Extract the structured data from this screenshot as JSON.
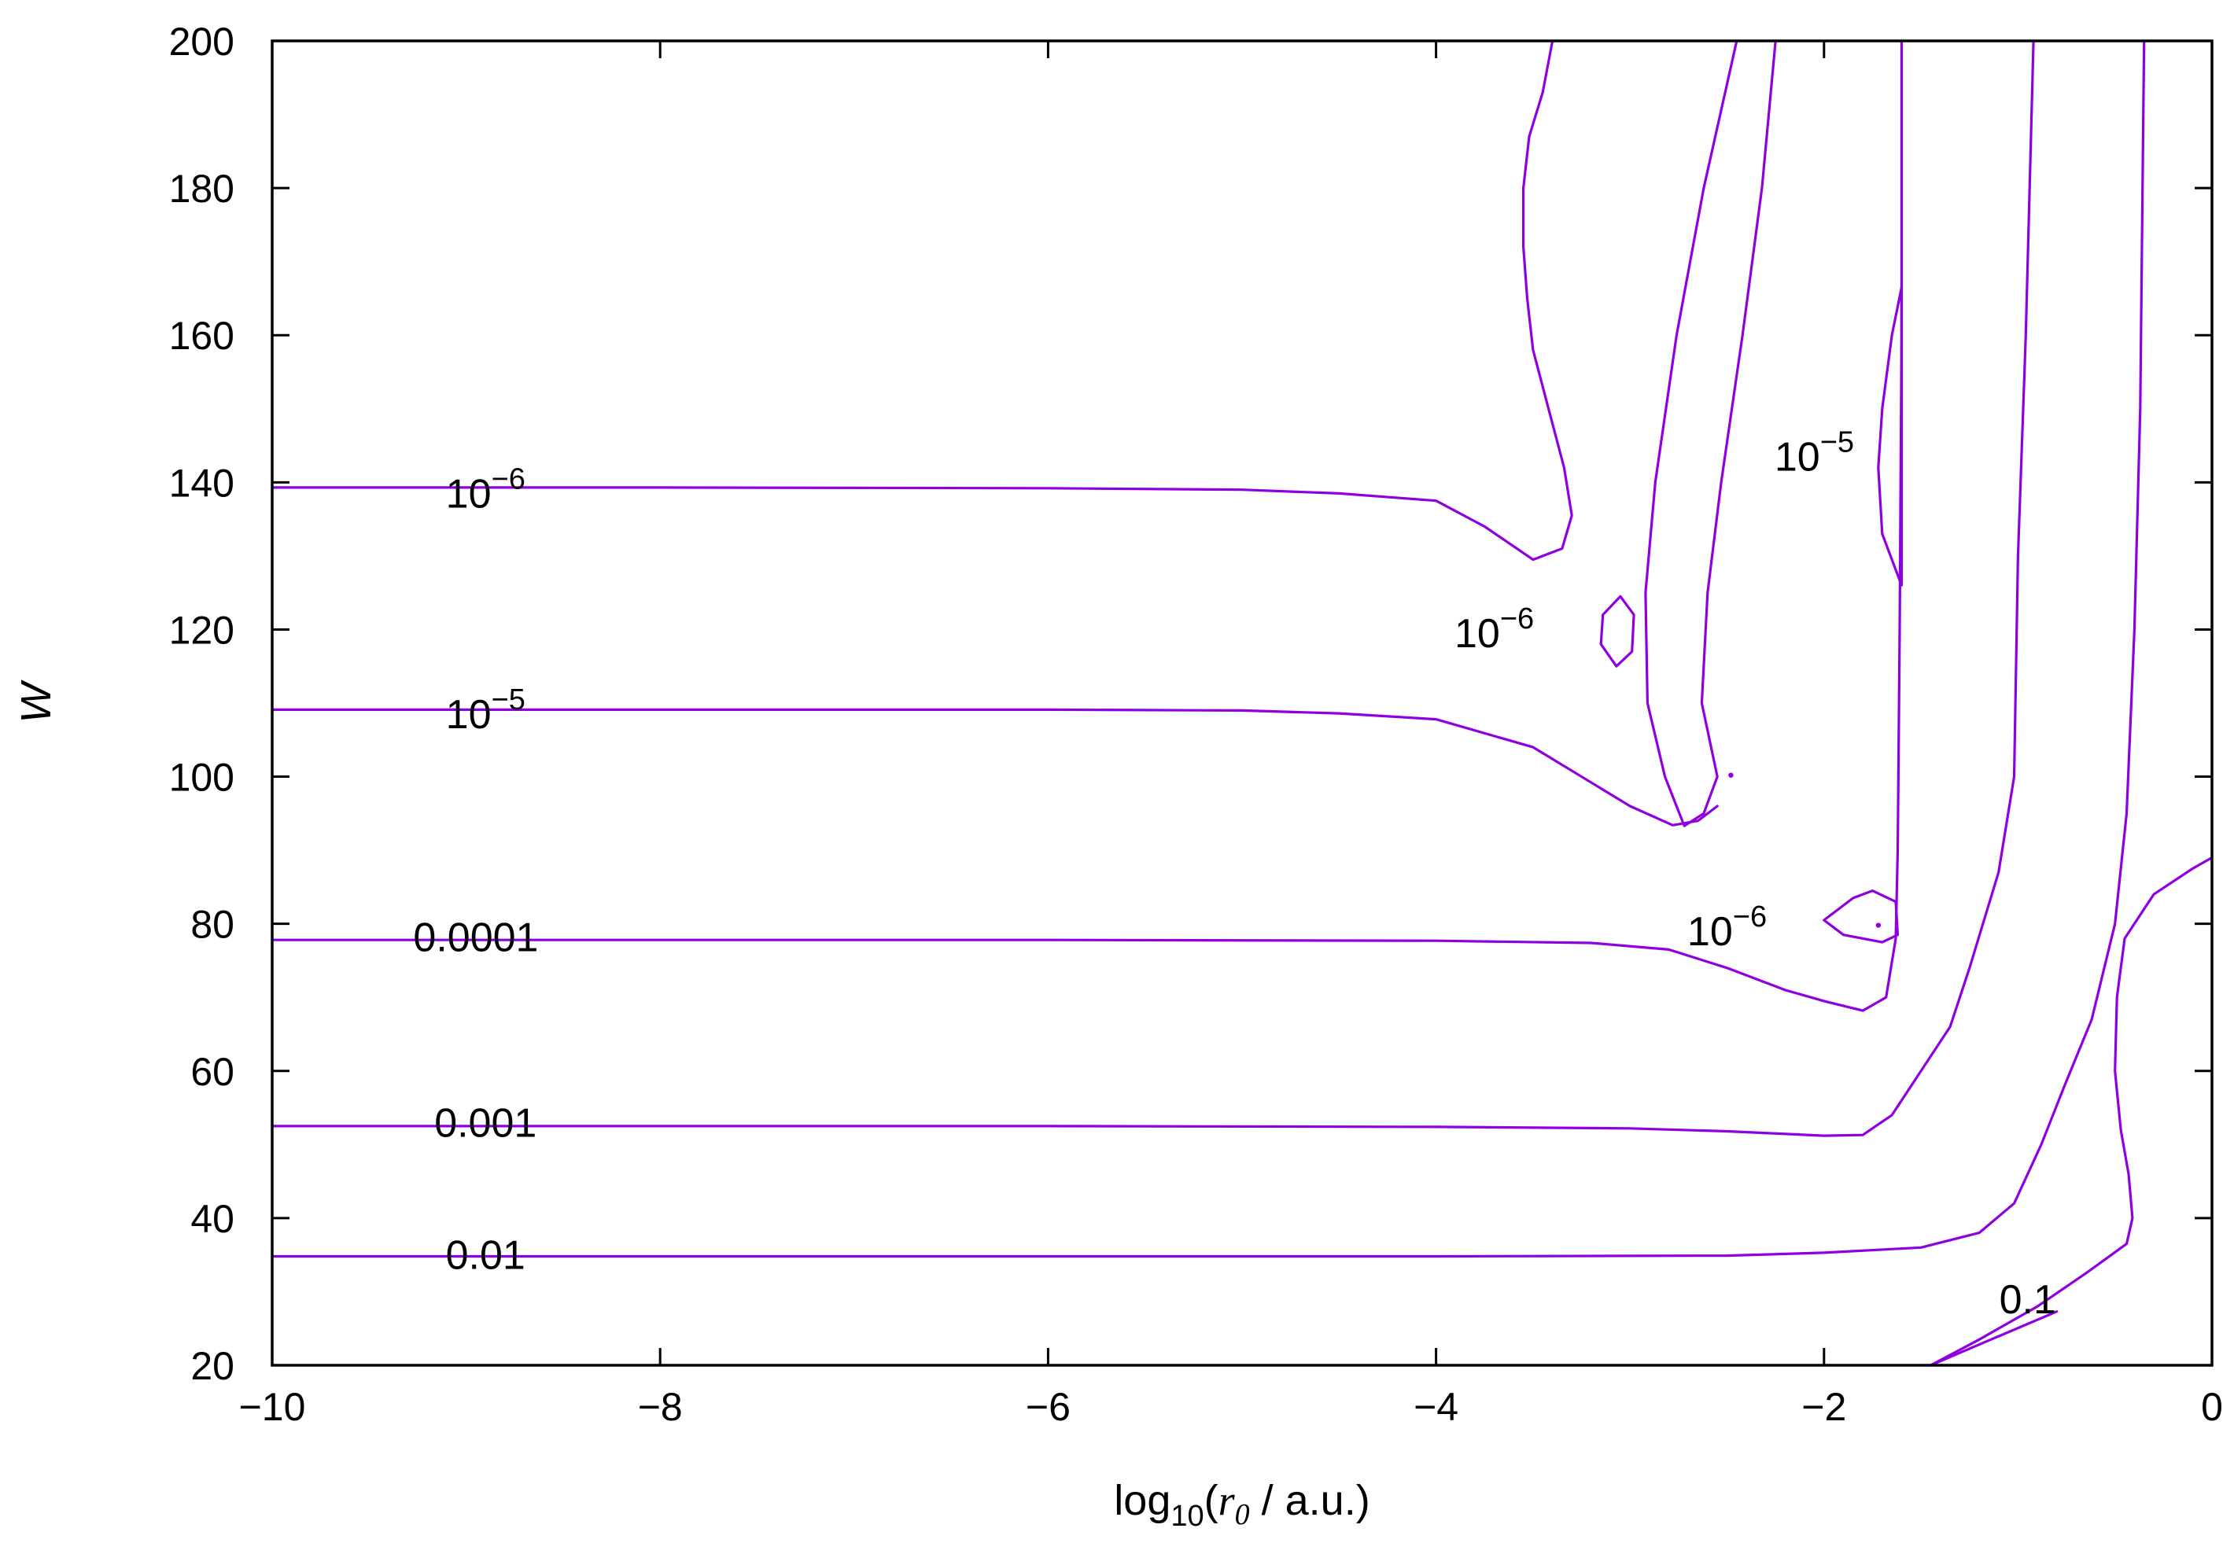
{
  "chart_data": {
    "type": "contour",
    "xlabel": "log10(r0 / a.u.)",
    "ylabel": "W",
    "xlim": [
      -10,
      0
    ],
    "ylim": [
      20,
      200
    ],
    "x_ticks": [
      -10,
      -8,
      -6,
      -4,
      -2,
      0
    ],
    "y_ticks": [
      20,
      40,
      60,
      80,
      100,
      120,
      140,
      160,
      180,
      200
    ],
    "x_tick_labels": [
      "−10",
      "−8",
      "−6",
      "−4",
      "−2",
      "0"
    ],
    "y_tick_labels": [
      "20",
      "40",
      "60",
      "80",
      "100",
      "120",
      "140",
      "160",
      "180",
      "200"
    ],
    "grid": false,
    "line_color": "#8f00e0",
    "contours": [
      {
        "level": "1e-6",
        "paths": [
          [
            [
              -10,
              139.3
            ],
            [
              -8,
              139.3
            ],
            [
              -6,
              139.2
            ],
            [
              -5,
              139
            ],
            [
              -4.5,
              138.5
            ],
            [
              -4,
              137.5
            ],
            [
              -3.75,
              134
            ],
            [
              -3.5,
              129.5
            ],
            [
              -3.35,
              131
            ],
            [
              -3.3,
              135.5
            ],
            [
              -3.34,
              142
            ],
            [
              -3.42,
              150
            ],
            [
              -3.5,
              158
            ],
            [
              -3.53,
              165
            ],
            [
              -3.55,
              172
            ],
            [
              -3.55,
              180
            ],
            [
              -3.52,
              187
            ],
            [
              -3.45,
              193
            ],
            [
              -3.4,
              200
            ]
          ],
          [
            [
              -2.45,
              200
            ],
            [
              -2.62,
              180
            ],
            [
              -2.76,
              160
            ],
            [
              -2.87,
              140
            ],
            [
              -2.92,
              125
            ],
            [
              -2.91,
              110
            ],
            [
              -2.82,
              100
            ],
            [
              -2.72,
              93.3
            ],
            [
              -2.62,
              95
            ],
            [
              -2.55,
              100
            ],
            [
              -2.63,
              110
            ],
            [
              -2.6,
              125
            ],
            [
              -2.53,
              140
            ],
            [
              -2.42,
              160
            ],
            [
              -2.32,
              180
            ],
            [
              -2.25,
              200
            ]
          ]
        ],
        "labels": [
          {
            "text": "10",
            "sup": "−6",
            "x": -8.9,
            "y": 138.5
          },
          {
            "text": "10",
            "sup": "−6",
            "x": -3.7,
            "y": 119.5
          },
          {
            "text": "10",
            "sup": "−6",
            "x": -2.5,
            "y": 79.0
          }
        ]
      },
      {
        "level": "1e-5",
        "paths": [
          [
            [
              -10,
              109.1
            ],
            [
              -8,
              109.1
            ],
            [
              -6,
              109.1
            ],
            [
              -5,
              109
            ],
            [
              -4.5,
              108.6
            ],
            [
              -4,
              107.8
            ],
            [
              -3.5,
              104
            ],
            [
              -3.0,
              96
            ],
            [
              -2.78,
              93.4
            ],
            [
              -2.65,
              94
            ],
            [
              -2.55,
              96
            ]
          ],
          [
            [
              -1.6,
              200
            ],
            [
              -1.6,
              160
            ],
            [
              -1.61,
              120
            ],
            [
              -1.62,
              90
            ],
            [
              -1.63,
              78
            ],
            [
              -1.68,
              70
            ],
            [
              -1.8,
              68.2
            ],
            [
              -2.0,
              69.5
            ],
            [
              -2.2,
              71
            ],
            [
              -2.5,
              74
            ],
            [
              -2.8,
              76.5
            ],
            [
              -3.2,
              77.4
            ],
            [
              -4,
              77.7
            ],
            [
              -6,
              77.8
            ],
            [
              -8,
              77.8
            ],
            [
              -10,
              77.8
            ]
          ]
        ],
        "loops": [
          [
            [
              -3.05,
              124.5
            ],
            [
              -2.98,
              122
            ],
            [
              -2.99,
              117
            ],
            [
              -3.07,
              115
            ],
            [
              -3.15,
              118
            ],
            [
              -3.14,
              122
            ],
            [
              -3.05,
              124.5
            ]
          ],
          [
            [
              -1.6,
              166.5
            ],
            [
              -1.65,
              160
            ],
            [
              -1.7,
              150
            ],
            [
              -1.72,
              142
            ],
            [
              -1.7,
              133
            ],
            [
              -1.6,
              126
            ],
            [
              -1.6,
              146
            ],
            [
              -1.6,
              166.5
            ]
          ],
          [
            [
              -1.75,
              84.5
            ],
            [
              -1.63,
              83
            ],
            [
              -1.62,
              78.5
            ],
            [
              -1.7,
              77.5
            ],
            [
              -1.9,
              78.5
            ],
            [
              -2.0,
              80.5
            ],
            [
              -1.85,
              83.5
            ],
            [
              -1.75,
              84.5
            ]
          ]
        ],
        "labels": [
          {
            "text": "10",
            "sup": "−5",
            "x": -8.9,
            "y": 108.5
          },
          {
            "text": "10",
            "sup": "−5",
            "x": -2.05,
            "y": 143.5
          }
        ]
      },
      {
        "level": "0.0001",
        "paths": [
          [
            [
              -10,
              52.5
            ],
            [
              -8,
              52.5
            ],
            [
              -6,
              52.5
            ],
            [
              -4,
              52.4
            ],
            [
              -3,
              52.2
            ],
            [
              -2.5,
              51.8
            ],
            [
              -2.0,
              51.2
            ],
            [
              -1.8,
              51.3
            ],
            [
              -1.65,
              54
            ],
            [
              -1.5,
              60
            ],
            [
              -1.35,
              66
            ],
            [
              -1.25,
              74
            ],
            [
              -1.1,
              87
            ],
            [
              -1.02,
              100
            ],
            [
              -1.0,
              130
            ],
            [
              -0.96,
              160
            ],
            [
              -0.94,
              180
            ],
            [
              -0.92,
              200
            ]
          ]
        ],
        "labels": [
          {
            "text": "0.0001",
            "x": -8.95,
            "y": 78.2
          }
        ]
      },
      {
        "level": "0.001",
        "paths": [
          [
            [
              -10,
              34.8
            ],
            [
              -8,
              34.8
            ],
            [
              -6,
              34.8
            ],
            [
              -4,
              34.8
            ],
            [
              -2.5,
              34.9
            ],
            [
              -2.0,
              35.3
            ],
            [
              -1.5,
              36
            ],
            [
              -1.2,
              38
            ],
            [
              -1.02,
              42
            ],
            [
              -0.88,
              50
            ],
            [
              -0.76,
              58
            ],
            [
              -0.62,
              67
            ],
            [
              -0.5,
              80
            ],
            [
              -0.44,
              95
            ],
            [
              -0.4,
              120
            ],
            [
              -0.37,
              150
            ],
            [
              -0.35,
              200
            ]
          ]
        ],
        "labels": [
          {
            "text": "0.001",
            "x": -8.9,
            "y": 53.0
          }
        ]
      },
      {
        "level": "0.01",
        "paths": [
          [
            [
              -1.45,
              20
            ],
            [
              -1.2,
              23.5
            ],
            [
              -0.9,
              28
            ],
            [
              -0.65,
              32.5
            ],
            [
              -0.44,
              36.5
            ],
            [
              -0.41,
              40
            ],
            [
              -0.43,
              46
            ],
            [
              -0.47,
              52
            ],
            [
              -0.5,
              60
            ],
            [
              -0.49,
              70
            ],
            [
              -0.45,
              78
            ],
            [
              -0.3,
              84
            ],
            [
              -0.1,
              87.5
            ],
            [
              0,
              89
            ]
          ]
        ],
        "labels": [
          {
            "text": "0.01",
            "x": -8.9,
            "y": 35.0
          }
        ]
      },
      {
        "level": "0.1",
        "paths": [],
        "labels": [
          {
            "text": "0.1",
            "x": -0.95,
            "y": 29.0
          }
        ]
      }
    ],
    "markers": [
      {
        "x": -2.48,
        "y": 100.2
      },
      {
        "x": -1.72,
        "y": 79.8
      }
    ]
  }
}
